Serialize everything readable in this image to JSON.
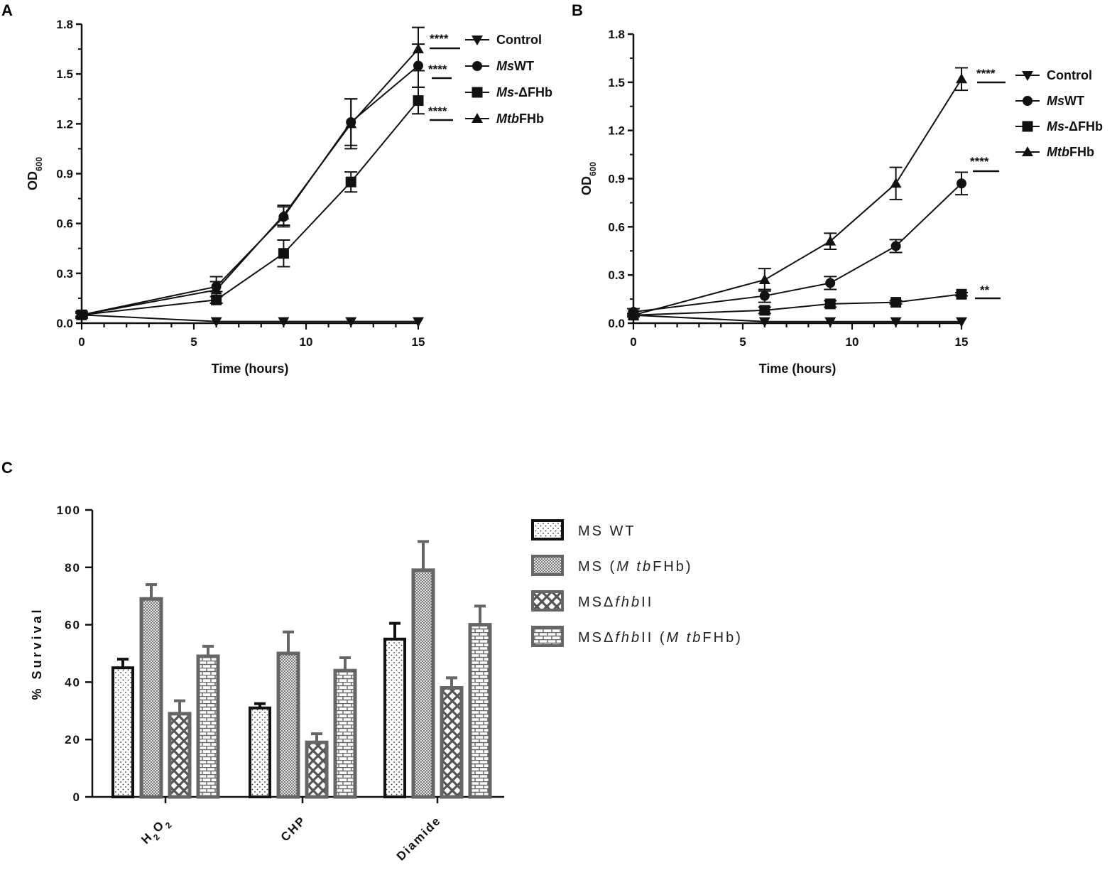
{
  "panels": {
    "a": "A",
    "b": "B",
    "c": "C"
  },
  "chart_data": [
    {
      "type": "line",
      "panel": "A",
      "xlabel": "Time (hours)",
      "ylabel": "OD",
      "ylabel_sub": "600",
      "xlim": [
        0,
        15
      ],
      "ylim": [
        0,
        1.8
      ],
      "x_ticks": [
        "0",
        "5",
        "10",
        "15"
      ],
      "y_ticks": [
        "0.0",
        "0.3",
        "0.6",
        "0.9",
        "1.2",
        "1.5",
        "1.8"
      ],
      "x": [
        0,
        6,
        9,
        12,
        15
      ],
      "series": [
        {
          "name": "Control",
          "marker": "triangle-down",
          "values": [
            0.05,
            0.01,
            0.01,
            0.01,
            0.01
          ],
          "errors": [
            0,
            0,
            0,
            0,
            0
          ]
        },
        {
          "name": "MsWT",
          "name_italic": "Ms",
          "name_rest": "WT",
          "marker": "circle",
          "values": [
            0.05,
            0.22,
            0.64,
            1.21,
            1.55
          ],
          "errors": [
            0.02,
            0.03,
            0.06,
            0.14,
            0.13
          ]
        },
        {
          "name": "Ms-ΔFHb",
          "name_italic": "Ms",
          "name_rest": "-ΔFHb",
          "marker": "square",
          "values": [
            0.05,
            0.14,
            0.42,
            0.85,
            1.34
          ],
          "errors": [
            0.01,
            0.02,
            0.08,
            0.06,
            0.08
          ]
        },
        {
          "name": "MtbFHb",
          "name_italic": "Mtb",
          "name_rest": "FHb",
          "marker": "triangle-up",
          "values": [
            0.05,
            0.2,
            0.65,
            1.2,
            1.65
          ],
          "errors": [
            0.01,
            0.08,
            0.06,
            0.15,
            0.13
          ]
        }
      ],
      "significance": [
        "****",
        "****",
        "****"
      ]
    },
    {
      "type": "line",
      "panel": "B",
      "xlabel": "Time (hours)",
      "ylabel": "OD",
      "ylabel_sub": "600",
      "xlim": [
        0,
        15
      ],
      "ylim": [
        0,
        1.8
      ],
      "x_ticks": [
        "0",
        "5",
        "10",
        "15"
      ],
      "y_ticks": [
        "0.0",
        "0.3",
        "0.6",
        "0.9",
        "1.2",
        "1.5",
        "1.8"
      ],
      "x": [
        0,
        6,
        9,
        12,
        15
      ],
      "series": [
        {
          "name": "Control",
          "marker": "triangle-down",
          "values": [
            0.05,
            0.01,
            0.01,
            0.01,
            0.01
          ],
          "errors": [
            0,
            0,
            0,
            0,
            0
          ]
        },
        {
          "name": "MsWT",
          "name_italic": "Ms",
          "name_rest": "WT",
          "marker": "circle",
          "values": [
            0.07,
            0.17,
            0.25,
            0.48,
            0.87
          ],
          "errors": [
            0.02,
            0.04,
            0.04,
            0.04,
            0.07
          ]
        },
        {
          "name": "Ms-ΔFHb",
          "name_italic": "Ms",
          "name_rest": "-ΔFHb",
          "marker": "square",
          "values": [
            0.05,
            0.08,
            0.12,
            0.13,
            0.18
          ],
          "errors": [
            0.01,
            0.02,
            0.02,
            0.01,
            0.01
          ]
        },
        {
          "name": "MtbFHb",
          "name_italic": "Mtb",
          "name_rest": "FHb",
          "marker": "triangle-up",
          "values": [
            0.05,
            0.27,
            0.51,
            0.87,
            1.52
          ],
          "errors": [
            0.01,
            0.07,
            0.05,
            0.1,
            0.07
          ]
        }
      ],
      "significance": [
        "****",
        "****",
        "**"
      ]
    },
    {
      "type": "bar",
      "panel": "C",
      "ylabel": "% Survival",
      "ylim": [
        0,
        100
      ],
      "y_ticks": [
        "0",
        "20",
        "40",
        "60",
        "80",
        "100"
      ],
      "categories": [
        "H2O2",
        "CHP",
        "Diamide"
      ],
      "category_labels": [
        {
          "main": "H",
          "sub": "2",
          "main2": "O",
          "sub2": "2"
        },
        {
          "main": "CHP"
        },
        {
          "main": "Diamide"
        }
      ],
      "series": [
        {
          "name": "MS WT",
          "label_parts": [
            "MS WT"
          ],
          "pattern": "dots",
          "values": [
            45,
            31,
            55
          ],
          "errors": [
            3,
            1.5,
            5.5
          ]
        },
        {
          "name": "MS (MtbFHb)",
          "label_parts": [
            "MS (",
            "M tb",
            "FHb)"
          ],
          "pattern": "dense",
          "values": [
            69,
            50,
            79
          ],
          "errors": [
            5,
            7.5,
            10
          ]
        },
        {
          "name": "MSΔfhbII",
          "label_parts": [
            "MSΔ",
            "fhb",
            "II"
          ],
          "pattern": "cross",
          "values": [
            29,
            19,
            38
          ],
          "errors": [
            4.5,
            3,
            3.5
          ]
        },
        {
          "name": "MSΔfhbII (MtbFHb)",
          "label_parts": [
            "MSΔ",
            "fhb",
            "II (",
            "M tb",
            "FHb)"
          ],
          "pattern": "brick",
          "values": [
            49,
            44,
            60
          ],
          "errors": [
            3.5,
            4.5,
            6.5
          ]
        }
      ]
    }
  ]
}
